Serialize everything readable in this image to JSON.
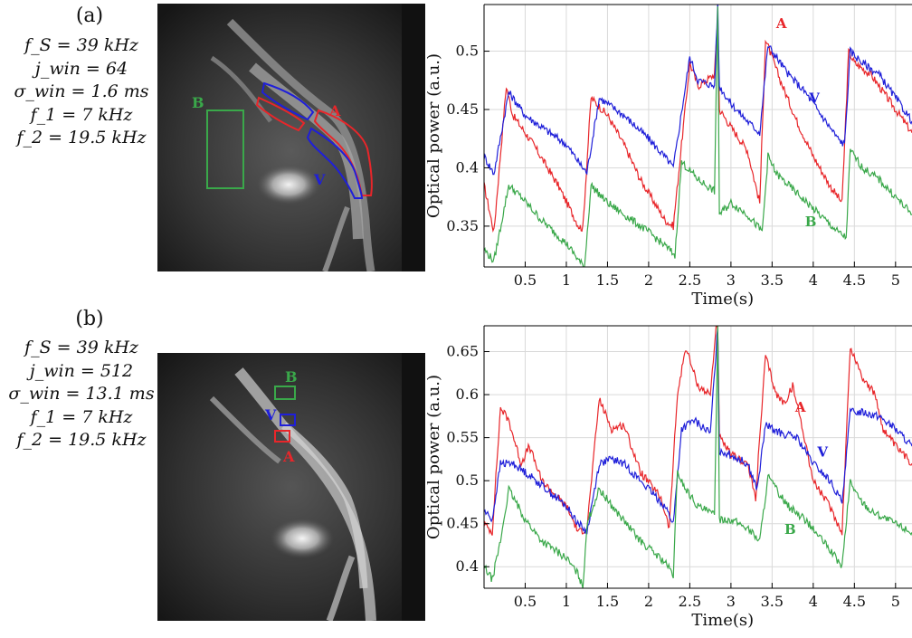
{
  "panels": [
    {
      "label": "(a)",
      "params": [
        "f_S = 39 kHz",
        "j_win = 64",
        "σ_win = 1.6 ms",
        "f_1 = 7 kHz",
        "f_2 = 19.5 kHz"
      ],
      "image_labels": [
        "B",
        "A",
        "V"
      ]
    },
    {
      "label": "(b)",
      "params": [
        "f_S = 39 kHz",
        "j_win = 512",
        "σ_win = 13.1 ms",
        "f_1 = 7 kHz",
        "f_2 = 19.5 kHz"
      ],
      "image_labels": [
        "B",
        "V",
        "A"
      ]
    }
  ],
  "colors": {
    "A": "#e8262a",
    "V": "#1f1fd9",
    "B": "#3aa84a",
    "grid": "#d9d9d9"
  },
  "chart_data": [
    {
      "type": "line",
      "xlabel": "Time(s)",
      "ylabel": "Optical power (a.u.)",
      "xlim": [
        0,
        5.2
      ],
      "ylim": [
        0.315,
        0.54
      ],
      "xticks": [
        0.5,
        1,
        1.5,
        2,
        2.5,
        3,
        3.5,
        4,
        4.5,
        5
      ],
      "yticks": [
        0.35,
        0.4,
        0.45,
        0.5
      ],
      "ytick_labels": [
        "0.35",
        "0.4",
        "0.45",
        "0.5"
      ],
      "grid": true,
      "series": [
        {
          "name": "A",
          "color": "#e8262a",
          "label_at": [
            3.55,
            0.52
          ],
          "x": [
            0,
            0.12,
            0.27,
            0.35,
            0.6,
            0.9,
            1.15,
            1.2,
            1.3,
            1.5,
            1.7,
            1.9,
            2.2,
            2.3,
            2.5,
            2.6,
            2.8,
            2.84,
            2.86,
            3.0,
            3.2,
            3.35,
            3.42,
            3.6,
            3.8,
            4.0,
            4.2,
            4.35,
            4.43,
            4.5,
            4.7,
            4.85,
            5.0,
            5.2
          ],
          "y": [
            0.385,
            0.345,
            0.47,
            0.445,
            0.42,
            0.385,
            0.35,
            0.348,
            0.46,
            0.445,
            0.42,
            0.39,
            0.355,
            0.35,
            0.49,
            0.47,
            0.48,
            0.53,
            0.45,
            0.435,
            0.415,
            0.37,
            0.51,
            0.475,
            0.44,
            0.41,
            0.385,
            0.37,
            0.5,
            0.49,
            0.48,
            0.465,
            0.45,
            0.43
          ]
        },
        {
          "name": "V",
          "color": "#1f1fd9",
          "label_at": [
            3.95,
            0.456
          ],
          "x": [
            0,
            0.12,
            0.3,
            0.5,
            0.8,
            1.0,
            1.2,
            1.25,
            1.4,
            1.7,
            2.0,
            2.25,
            2.3,
            2.5,
            2.6,
            2.8,
            2.84,
            2.86,
            3.0,
            3.2,
            3.35,
            3.45,
            3.7,
            3.9,
            4.1,
            4.3,
            4.38,
            4.45,
            4.6,
            4.8,
            5.0,
            5.2
          ],
          "y": [
            0.41,
            0.395,
            0.465,
            0.445,
            0.43,
            0.42,
            0.4,
            0.396,
            0.46,
            0.445,
            0.425,
            0.405,
            0.4,
            0.495,
            0.475,
            0.47,
            0.54,
            0.47,
            0.455,
            0.44,
            0.43,
            0.505,
            0.48,
            0.465,
            0.445,
            0.425,
            0.42,
            0.5,
            0.49,
            0.48,
            0.46,
            0.44
          ]
        },
        {
          "name": "B",
          "color": "#3aa84a",
          "label_at": [
            3.9,
            0.35
          ],
          "x": [
            0,
            0.12,
            0.3,
            0.45,
            0.7,
            1.0,
            1.18,
            1.22,
            1.3,
            1.5,
            1.7,
            2.0,
            2.25,
            2.32,
            2.4,
            2.6,
            2.8,
            2.84,
            2.86,
            3.0,
            3.2,
            3.38,
            3.45,
            3.55,
            3.7,
            4.0,
            4.3,
            4.4,
            4.45,
            4.6,
            4.8,
            5.0,
            5.2
          ],
          "y": [
            0.33,
            0.32,
            0.385,
            0.375,
            0.355,
            0.335,
            0.318,
            0.315,
            0.385,
            0.37,
            0.36,
            0.345,
            0.33,
            0.325,
            0.405,
            0.39,
            0.38,
            0.54,
            0.36,
            0.37,
            0.36,
            0.345,
            0.41,
            0.395,
            0.385,
            0.365,
            0.345,
            0.34,
            0.415,
            0.4,
            0.39,
            0.375,
            0.36
          ]
        }
      ]
    },
    {
      "type": "line",
      "xlabel": "Time(s)",
      "ylabel": "Optical power (a.u.)",
      "xlim": [
        0,
        5.2
      ],
      "ylim": [
        0.375,
        0.68
      ],
      "xticks": [
        0.5,
        1,
        1.5,
        2,
        2.5,
        3,
        3.5,
        4,
        4.5,
        5
      ],
      "yticks": [
        0.4,
        0.45,
        0.5,
        0.55,
        0.6,
        0.65
      ],
      "ytick_labels": [
        "0.4",
        "0.45",
        "0.5",
        "0.55",
        "0.6",
        "0.65"
      ],
      "grid": true,
      "series": [
        {
          "name": "A",
          "color": "#e8262a",
          "label_at": [
            3.78,
            0.58
          ],
          "x": [
            0,
            0.1,
            0.2,
            0.3,
            0.45,
            0.55,
            0.7,
            1.0,
            1.15,
            1.25,
            1.4,
            1.55,
            1.7,
            1.9,
            2.15,
            2.25,
            2.35,
            2.45,
            2.6,
            2.75,
            2.82,
            2.84,
            2.86,
            3.0,
            3.2,
            3.3,
            3.42,
            3.55,
            3.65,
            3.75,
            3.85,
            4.0,
            4.2,
            4.35,
            4.45,
            4.6,
            4.75,
            4.85,
            5.0,
            5.2
          ],
          "y": [
            0.45,
            0.44,
            0.585,
            0.57,
            0.52,
            0.54,
            0.5,
            0.47,
            0.44,
            0.445,
            0.595,
            0.56,
            0.565,
            0.51,
            0.48,
            0.445,
            0.6,
            0.655,
            0.61,
            0.6,
            0.68,
            0.68,
            0.55,
            0.53,
            0.52,
            0.48,
            0.645,
            0.6,
            0.59,
            0.61,
            0.57,
            0.5,
            0.47,
            0.44,
            0.655,
            0.62,
            0.6,
            0.56,
            0.54,
            0.52
          ]
        },
        {
          "name": "V",
          "color": "#1f1fd9",
          "label_at": [
            4.05,
            0.528
          ],
          "x": [
            0,
            0.1,
            0.2,
            0.35,
            0.5,
            0.7,
            1.0,
            1.15,
            1.25,
            1.4,
            1.55,
            1.7,
            2.0,
            2.2,
            2.3,
            2.4,
            2.55,
            2.75,
            2.84,
            2.86,
            3.0,
            3.2,
            3.32,
            3.42,
            3.6,
            3.8,
            4.0,
            4.2,
            4.35,
            4.45,
            4.6,
            4.8,
            5.0,
            5.2
          ],
          "y": [
            0.465,
            0.455,
            0.52,
            0.52,
            0.51,
            0.495,
            0.47,
            0.45,
            0.44,
            0.52,
            0.525,
            0.52,
            0.49,
            0.47,
            0.45,
            0.56,
            0.57,
            0.555,
            0.68,
            0.535,
            0.53,
            0.52,
            0.49,
            0.565,
            0.555,
            0.55,
            0.52,
            0.5,
            0.475,
            0.58,
            0.58,
            0.575,
            0.56,
            0.54
          ]
        },
        {
          "name": "B",
          "color": "#3aa84a",
          "label_at": [
            3.65,
            0.438
          ],
          "x": [
            0,
            0.1,
            0.2,
            0.3,
            0.5,
            0.7,
            1.0,
            1.15,
            1.2,
            1.25,
            1.4,
            1.6,
            1.9,
            2.2,
            2.3,
            2.35,
            2.45,
            2.6,
            2.8,
            2.84,
            2.86,
            3.0,
            3.2,
            3.35,
            3.45,
            3.55,
            3.7,
            3.9,
            4.2,
            4.35,
            4.45,
            4.55,
            4.7,
            4.9,
            5.2
          ],
          "y": [
            0.4,
            0.385,
            0.43,
            0.49,
            0.455,
            0.43,
            0.41,
            0.39,
            0.375,
            0.45,
            0.49,
            0.465,
            0.43,
            0.405,
            0.39,
            0.51,
            0.49,
            0.47,
            0.46,
            0.68,
            0.455,
            0.455,
            0.445,
            0.43,
            0.505,
            0.49,
            0.47,
            0.455,
            0.42,
            0.4,
            0.5,
            0.48,
            0.465,
            0.455,
            0.44
          ]
        }
      ]
    }
  ]
}
